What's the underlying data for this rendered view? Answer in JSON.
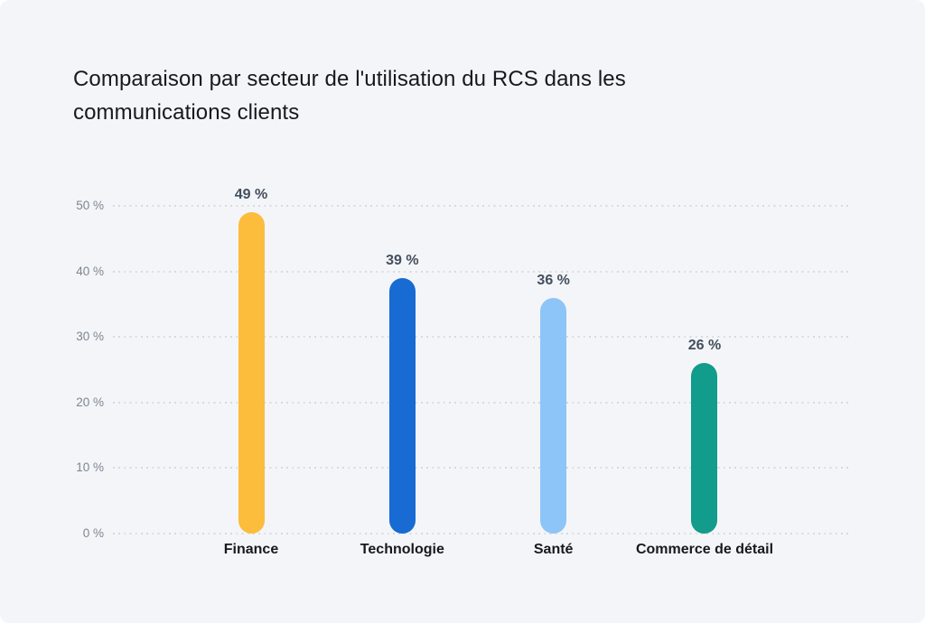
{
  "page": {
    "background_color": "#f4f5f8"
  },
  "chart_data": {
    "type": "bar",
    "title": "Comparaison par secteur de l'utilisation du RCS dans les communications clients",
    "categories": [
      "Finance",
      "Technologie",
      "Santé",
      "Commerce de détail"
    ],
    "values": [
      49,
      39,
      36,
      26
    ],
    "value_labels": [
      "49 %",
      "39 %",
      "36 %",
      "26 %"
    ],
    "bar_colors": [
      "#fcbc3c",
      "#176bd3",
      "#8dc5f8",
      "#119c8b"
    ],
    "xlabel": "",
    "ylabel": "",
    "ylim": [
      0,
      50
    ],
    "yticks": [
      0,
      10,
      20,
      30,
      40,
      50
    ],
    "ytick_labels": [
      "0 %",
      "10 %",
      "20 %",
      "30 %",
      "40 %",
      "50 %"
    ],
    "grid": "dotted-horizontal",
    "legend": "none",
    "colors": {
      "title_text": "#17191d",
      "value_label_text": "#434f5e",
      "tick_label_text": "#7c8692",
      "category_label_text": "#17191d",
      "gridline": "#d6d9de",
      "background": "#f4f5f8"
    }
  }
}
